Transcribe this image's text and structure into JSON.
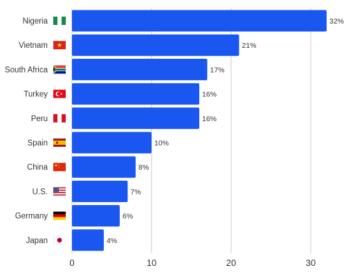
{
  "chart_data": {
    "type": "bar",
    "orientation": "horizontal",
    "title": "",
    "xlabel": "",
    "ylabel": "",
    "categories": [
      "Nigeria",
      "Vietnam",
      "South Africa",
      "Turkey",
      "Peru",
      "Spain",
      "China",
      "U.S.",
      "Germany",
      "Japan"
    ],
    "values": [
      32,
      21,
      17,
      16,
      16,
      10,
      8,
      7,
      6,
      4
    ],
    "value_labels": [
      "32%",
      "21%",
      "17%",
      "16%",
      "16%",
      "10%",
      "8%",
      "7%",
      "6%",
      "4%"
    ],
    "xlim": [
      0,
      34
    ],
    "xticks": [
      0,
      10,
      20,
      30
    ],
    "xtick_labels": [
      "0",
      "10",
      "20",
      "30"
    ],
    "grid": "vertical",
    "legend": "none",
    "bar_color": "#1a56f0",
    "grid_color": "#cccccc",
    "flag_icons": [
      "nigeria-flag-icon",
      "vietnam-flag-icon",
      "south-africa-flag-icon",
      "turkey-flag-icon",
      "peru-flag-icon",
      "spain-flag-icon",
      "china-flag-icon",
      "us-flag-icon",
      "germany-flag-icon",
      "japan-flag-icon"
    ]
  }
}
